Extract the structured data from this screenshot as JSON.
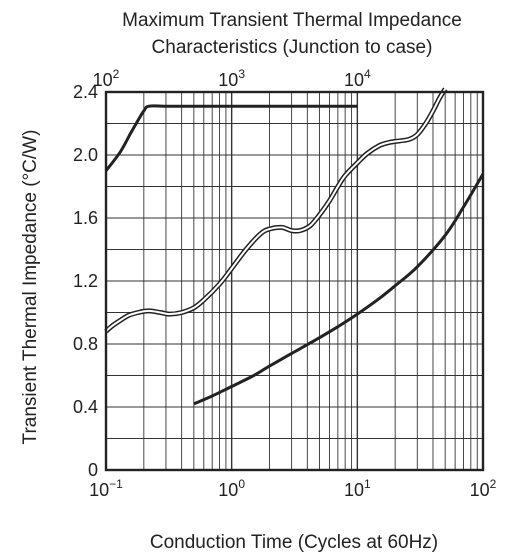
{
  "chart_data": {
    "type": "line",
    "title_lines": [
      "Maximum Transient Thermal Impedance",
      "Characteristics (Junction to case)"
    ],
    "xlabel": "Conduction Time (Cycles at 60Hz)",
    "ylabel": "Transient Thermal Impedance  (°C/W)",
    "x_scale": "log",
    "xlim": [
      0.1,
      100
    ],
    "ylim": [
      0,
      2.4
    ],
    "grid": true,
    "y_ticks": [
      "0",
      "0.4",
      "0.8",
      "1.2",
      "1.6",
      "2.0",
      "2.4"
    ],
    "y_tick_values": [
      0,
      0.4,
      0.8,
      1.2,
      1.6,
      2.0,
      2.4
    ],
    "x_ticks_bottom": [
      {
        "base": "10",
        "exp": "−1",
        "value": 0.1
      },
      {
        "base": "10",
        "exp": "0",
        "value": 1
      },
      {
        "base": "10",
        "exp": "1",
        "value": 10
      },
      {
        "base": "10",
        "exp": "2",
        "value": 100
      }
    ],
    "x_ticks_top": [
      {
        "base": "10",
        "exp": "2",
        "value": 0.1
      },
      {
        "base": "10",
        "exp": "3",
        "value": 1
      },
      {
        "base": "10",
        "exp": "4",
        "value": 10
      }
    ],
    "series": [
      {
        "style": "solid",
        "x": [
          0.1,
          0.13,
          0.16,
          0.2,
          0.22,
          0.3,
          0.5,
          1,
          2,
          5,
          10
        ],
        "y": [
          1.9,
          2.02,
          2.15,
          2.28,
          2.31,
          2.31,
          2.31,
          2.31,
          2.31,
          2.31,
          2.31
        ]
      },
      {
        "style": "solid",
        "x": [
          0.5,
          0.7,
          1,
          1.5,
          2,
          3,
          5,
          7,
          10,
          15,
          20,
          30,
          50,
          70,
          100
        ],
        "y": [
          0.42,
          0.47,
          0.53,
          0.6,
          0.66,
          0.74,
          0.84,
          0.91,
          0.99,
          1.09,
          1.17,
          1.29,
          1.49,
          1.67,
          1.88
        ]
      },
      {
        "style": "double",
        "x": [
          0.1,
          0.11,
          0.13,
          0.15,
          0.18,
          0.22,
          0.27,
          0.32,
          0.4,
          0.5,
          0.6,
          0.8,
          1,
          1.3,
          1.7,
          2,
          2.5,
          3,
          3.5,
          4.2,
          5,
          6,
          7,
          8,
          10,
          12,
          15,
          18,
          22,
          26,
          30,
          35,
          40,
          45,
          50
        ],
        "y": [
          0.88,
          0.91,
          0.95,
          0.98,
          1.0,
          1.01,
          1.0,
          0.99,
          1.0,
          1.03,
          1.08,
          1.18,
          1.28,
          1.4,
          1.5,
          1.53,
          1.54,
          1.52,
          1.52,
          1.55,
          1.62,
          1.71,
          1.8,
          1.87,
          1.95,
          2.01,
          2.06,
          2.08,
          2.09,
          2.1,
          2.13,
          2.2,
          2.28,
          2.36,
          2.42
        ]
      }
    ]
  }
}
